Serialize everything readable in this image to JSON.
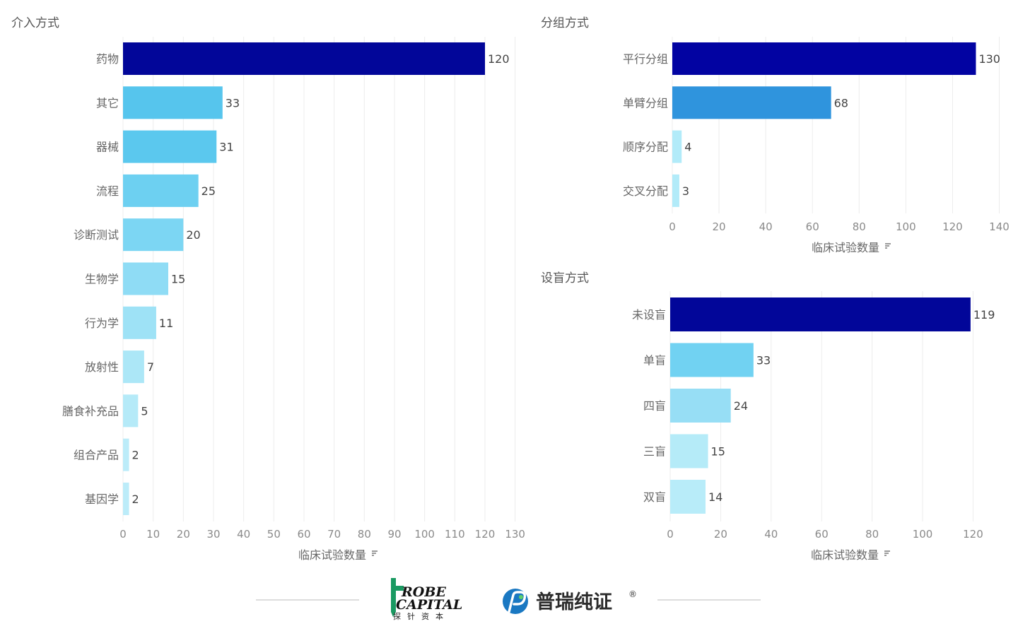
{
  "chart_data": [
    {
      "id": "intervention",
      "type": "bar",
      "orientation": "horizontal",
      "title": "介入方式",
      "xlabel": "临床试验数量",
      "categories": [
        "药物",
        "其它",
        "器械",
        "流程",
        "诊断测试",
        "生物学",
        "行为学",
        "放射性",
        "膳食补充品",
        "组合产品",
        "基因学"
      ],
      "values": [
        120,
        33,
        31,
        25,
        20,
        15,
        11,
        7,
        5,
        2,
        2
      ],
      "colors": [
        "#020699",
        "#56c5ed",
        "#5bc8ee",
        "#6dd0f1",
        "#7cd6f3",
        "#8fdcf5",
        "#9ee2f6",
        "#ace7f7",
        "#b5eaf8",
        "#bcecf9",
        "#bcecf9"
      ],
      "xlim": [
        0,
        135
      ],
      "xticks": [
        0,
        10,
        20,
        30,
        40,
        50,
        60,
        70,
        80,
        90,
        100,
        110,
        120,
        130
      ],
      "grid": true
    },
    {
      "id": "grouping",
      "type": "bar",
      "orientation": "horizontal",
      "title": "分组方式",
      "xlabel": "临床试验数量",
      "categories": [
        "平行分组",
        "单臂分组",
        "顺序分配",
        "交叉分配"
      ],
      "values": [
        130,
        68,
        4,
        3
      ],
      "colors": [
        "#0203a2",
        "#2f94dd",
        "#b2ebf9",
        "#b2ebf9"
      ],
      "xlim": [
        0,
        145
      ],
      "xticks": [
        0,
        20,
        40,
        60,
        80,
        100,
        120,
        140
      ],
      "grid": true
    },
    {
      "id": "blinding",
      "type": "bar",
      "orientation": "horizontal",
      "title": "设盲方式",
      "xlabel": "临床试验数量",
      "categories": [
        "未设盲",
        "单盲",
        "四盲",
        "三盲",
        "双盲"
      ],
      "values": [
        119,
        33,
        24,
        15,
        14
      ],
      "colors": [
        "#020699",
        "#71d2f2",
        "#97def5",
        "#b5ebf8",
        "#b8ecf9"
      ],
      "xlim": [
        0,
        135
      ],
      "xticks": [
        0,
        20,
        40,
        60,
        80,
        100,
        120
      ],
      "grid": true
    }
  ],
  "footer": {
    "logo_left_main": "ROBE",
    "logo_left_second": "CAPITAL",
    "logo_left_sub": "探针资本",
    "logo_right_name": "普瑞纯证",
    "logo_right_reg": "®",
    "logo_left_color": "#1a9a62",
    "logo_right_color": "#1a78c2"
  }
}
